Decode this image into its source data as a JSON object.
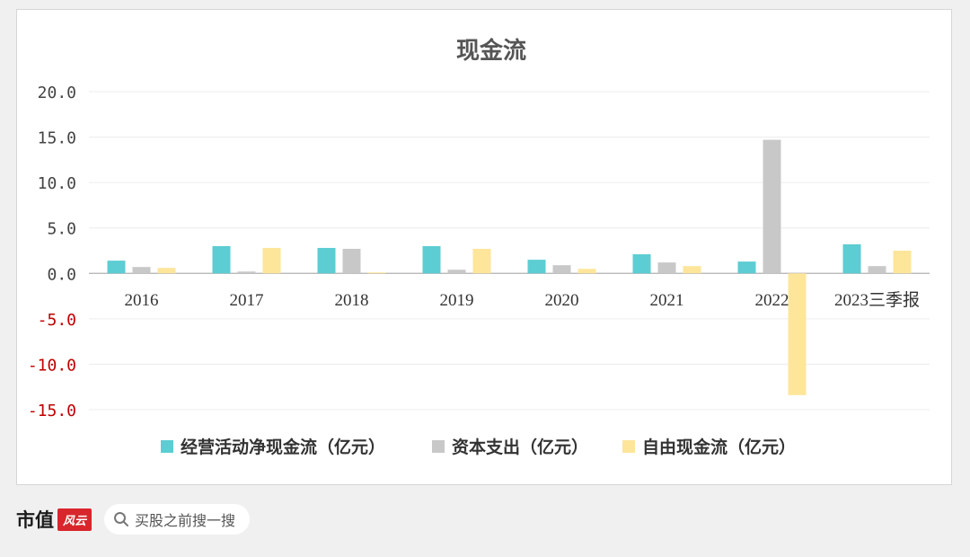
{
  "brand": {
    "name": "市值",
    "seal": "风云"
  },
  "search": {
    "placeholder": "买股之前搜一搜"
  },
  "chart_data": {
    "type": "bar",
    "title": "现金流",
    "categories": [
      "2016",
      "2017",
      "2018",
      "2019",
      "2020",
      "2021",
      "2022",
      "2023三季报"
    ],
    "series": [
      {
        "name": "经营活动净现金流（亿元）",
        "color": "#5ccdd2",
        "values": [
          1.4,
          3.0,
          2.8,
          3.0,
          1.5,
          2.1,
          1.3,
          3.2
        ]
      },
      {
        "name": "资本支出（亿元）",
        "color": "#c8c8c8",
        "values": [
          0.7,
          0.2,
          2.7,
          0.4,
          0.9,
          1.2,
          14.7,
          0.8
        ]
      },
      {
        "name": "自由现金流（亿元）",
        "color": "#fde59a",
        "values": [
          0.6,
          2.8,
          0.1,
          2.7,
          0.5,
          0.8,
          -13.4,
          2.5
        ]
      }
    ],
    "yticks": [
      "20.0",
      "15.0",
      "10.0",
      "5.0",
      "0.0",
      "-5.0",
      "-10.0",
      "-15.0"
    ],
    "ylim": [
      -15,
      20
    ],
    "grid": true,
    "legend_position": "bottom",
    "colors": {
      "positive_tick": "#444444",
      "negative_tick": "#c00000",
      "grid": "#ececec",
      "axis": "#b0b0b0"
    }
  }
}
